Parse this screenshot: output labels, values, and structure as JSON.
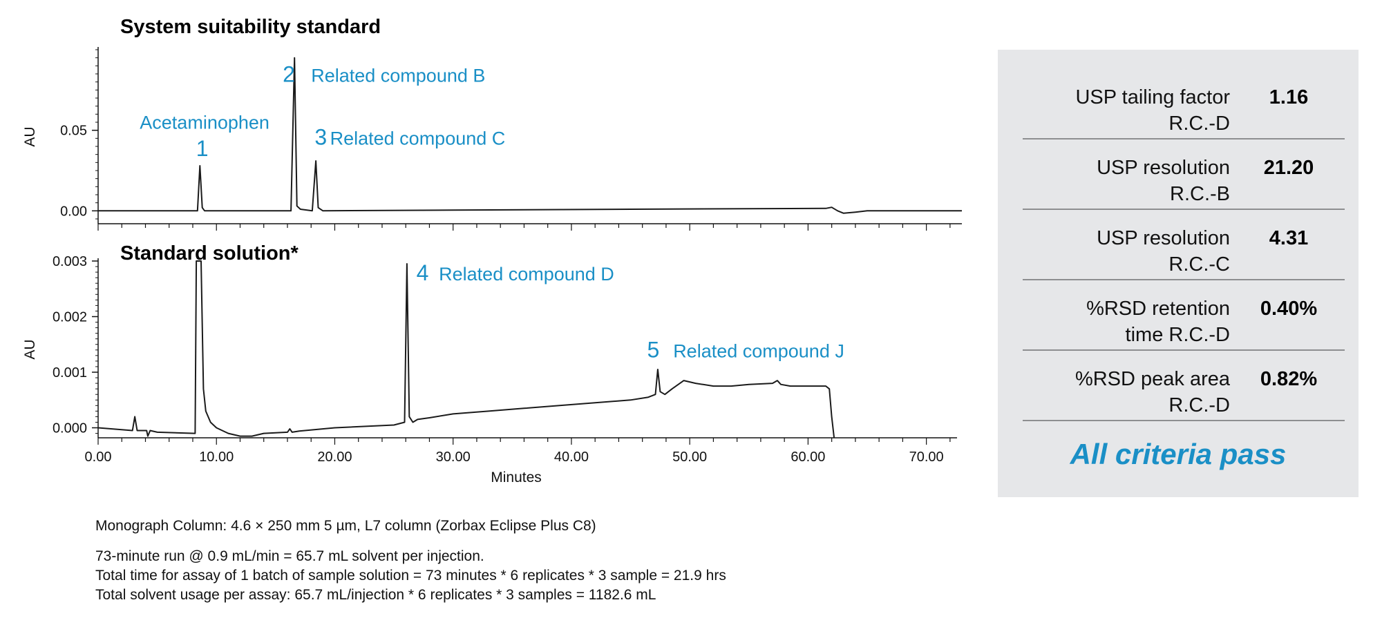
{
  "chart_data": [
    {
      "type": "line",
      "title": "System suitability standard",
      "xlabel": "",
      "ylabel": "AU",
      "xlim": [
        0,
        73
      ],
      "ylim": [
        -0.008,
        0.1
      ],
      "yticks": [
        0.0,
        0.05
      ],
      "ytick_labels": [
        "0.00",
        "0.05"
      ],
      "grid": false,
      "series": [
        {
          "x": [
            0,
            3,
            4,
            8.4,
            8.6,
            8.8,
            9.0,
            16.3,
            16.6,
            16.8,
            17.1,
            18.1,
            18.4,
            18.6,
            19.0,
            30,
            45,
            61.5,
            62,
            62.5,
            63,
            64,
            65,
            73
          ],
          "y": [
            0.0,
            0.0,
            0.0,
            0.0,
            0.028,
            0.002,
            0.0,
            0.0,
            0.095,
            0.003,
            0.001,
            0.0,
            0.031,
            0.002,
            0.0,
            0.0005,
            0.001,
            0.0015,
            0.0022,
            0.0,
            -0.0015,
            -0.0008,
            0.0,
            0.0
          ]
        }
      ],
      "annotations": [
        {
          "text": "Acetaminophen",
          "x": 9.0,
          "y": 0.051
        },
        {
          "text": "1",
          "x": 8.8,
          "y": 0.034
        },
        {
          "text": "2",
          "x": 15.6,
          "y": 0.08
        },
        {
          "text": "Related compound B",
          "x": 18.0,
          "y": 0.08
        },
        {
          "text": "3",
          "x": 18.3,
          "y": 0.041
        },
        {
          "text": "Related compound C",
          "x": 19.6,
          "y": 0.041
        }
      ]
    },
    {
      "type": "line",
      "title": "Standard solution*",
      "xlabel": "Minutes",
      "ylabel": "AU",
      "xlim": [
        0,
        73
      ],
      "ylim": [
        -0.00018,
        0.003
      ],
      "xticks": [
        0,
        10,
        20,
        30,
        40,
        50,
        60,
        70
      ],
      "xtick_labels": [
        "0.00",
        "10.00",
        "20.00",
        "30.00",
        "40.00",
        "50.00",
        "60.00",
        "70.00"
      ],
      "yticks": [
        0.0,
        0.001,
        0.002,
        0.003
      ],
      "ytick_labels": [
        "0.000",
        "0.001",
        "0.002",
        "0.003"
      ],
      "grid": false,
      "series": [
        {
          "x": [
            0,
            2.9,
            3.1,
            3.3,
            4.1,
            4.2,
            4.4,
            5,
            8.2,
            8.3,
            8.5,
            8.7,
            8.9,
            9.1,
            9.5,
            10,
            11,
            12,
            13,
            14,
            16,
            16.2,
            16.4,
            17,
            20,
            25,
            25.9,
            26.1,
            26.3,
            26.6,
            27,
            28,
            30,
            33,
            36,
            39,
            42,
            45,
            46.5,
            47.1,
            47.3,
            47.5,
            47.9,
            48.5,
            49.5,
            50.5,
            52,
            53.5,
            55,
            57,
            57.4,
            57.7,
            58.5,
            60,
            61.5,
            61.8,
            62.0,
            62.2
          ],
          "y": [
            0.0,
            -5e-05,
            0.0002,
            -5e-05,
            -5e-05,
            -0.00015,
            -5e-05,
            -8e-05,
            -0.0001,
            0.003,
            0.003,
            0.003,
            0.0007,
            0.0003,
            0.0001,
            0.0,
            -0.0001,
            -0.00015,
            -0.00015,
            -0.0001,
            -8e-05,
            -2e-05,
            -8e-05,
            -6e-05,
            0.0,
            5e-05,
            0.0001,
            0.00295,
            0.0002,
            0.0001,
            0.00015,
            0.00018,
            0.00025,
            0.0003,
            0.00035,
            0.0004,
            0.00045,
            0.0005,
            0.00055,
            0.0006,
            0.00105,
            0.00065,
            0.0006,
            0.0007,
            0.00085,
            0.0008,
            0.00075,
            0.00075,
            0.00078,
            0.0008,
            0.00085,
            0.00078,
            0.00075,
            0.00075,
            0.00075,
            0.0007,
            0.0002,
            -0.00018
          ]
        }
      ],
      "annotations": [
        {
          "text": "4",
          "x": 26.9,
          "y": 0.00265
        },
        {
          "text": "Related compound D",
          "x": 28.8,
          "y": 0.00265
        },
        {
          "text": "5",
          "x": 46.4,
          "y": 0.00127
        },
        {
          "text": "Related compound J",
          "x": 48.6,
          "y": 0.00127
        }
      ]
    }
  ],
  "criteria": {
    "rows": [
      {
        "label_line1": "USP tailing factor",
        "label_line2": "R.C.-D",
        "value": "1.16"
      },
      {
        "label_line1": "USP resolution",
        "label_line2": "R.C.-B",
        "value": "21.20"
      },
      {
        "label_line1": "USP resolution",
        "label_line2": "R.C.-C",
        "value": "4.31"
      },
      {
        "label_line1": "%RSD retention",
        "label_line2": "time R.C.-D",
        "value": "0.40%"
      },
      {
        "label_line1": "%RSD peak area",
        "label_line2": "R.C.-D",
        "value": "0.82%"
      }
    ],
    "verdict": "All criteria pass"
  },
  "notes": {
    "column": "Monograph Column: 4.6 × 250 mm 5 µm, L7 column (Zorbax Eclipse Plus C8)",
    "run": "73-minute run @ 0.9 mL/min = 65.7 mL solvent per injection.",
    "total_time": "Total time for assay of 1 batch of sample solution = 73 minutes * 6 replicates * 3 sample = 21.9 hrs",
    "total_solvent": "Total solvent usage per assay: 65.7 mL/injection * 6 replicates * 3 samples = 1182.6 mL"
  },
  "colors": {
    "trace": "#1a1a1a",
    "accent": "#1a8fc6",
    "panel_bg": "#e6e7e9"
  }
}
